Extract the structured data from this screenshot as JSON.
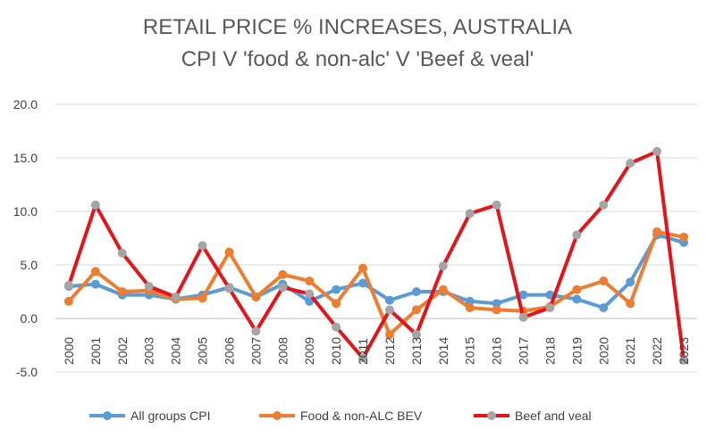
{
  "chart_data": {
    "type": "line",
    "title": "RETAIL PRICE % INCREASES, AUSTRALIA",
    "subtitle": "CPI V 'food & non-alc' V 'Beef & veal'",
    "xlabel": "",
    "ylabel": "",
    "ylim": [
      -5,
      20
    ],
    "yticks": [
      "20.0",
      "15.0",
      "10.0",
      "5.0",
      "0.0",
      "-5.0"
    ],
    "categories": [
      "2000",
      "2001",
      "2002",
      "2003",
      "2004",
      "2005",
      "2006",
      "2007",
      "2008",
      "2009",
      "2010",
      "2011",
      "2012",
      "2013",
      "2014",
      "2015",
      "2016",
      "2017",
      "2018",
      "2019",
      "2020",
      "2021",
      "2022",
      "2023"
    ],
    "grid": true,
    "legend_position": "bottom",
    "series": [
      {
        "name": "All groups CPI",
        "color": "#5B9BD5",
        "values": [
          3.0,
          3.2,
          2.2,
          2.2,
          1.8,
          2.2,
          2.9,
          2.0,
          3.2,
          1.6,
          2.7,
          3.3,
          1.7,
          2.5,
          2.5,
          1.6,
          1.4,
          2.2,
          2.2,
          1.8,
          1.0,
          3.4,
          7.8,
          7.1
        ]
      },
      {
        "name": "Food &  non-ALC BEV",
        "color": "#ED7D31",
        "values": [
          1.6,
          4.4,
          2.5,
          2.6,
          1.8,
          1.9,
          6.2,
          2.0,
          4.1,
          3.5,
          1.4,
          4.7,
          -1.5,
          0.8,
          2.7,
          1.0,
          0.8,
          0.7,
          1.1,
          2.7,
          3.5,
          1.4,
          8.1,
          7.6
        ]
      },
      {
        "name": "Beef and veal",
        "color": "#E3141B",
        "marker_color": "#A5A5A5",
        "values": [
          3.1,
          10.6,
          6.1,
          3.0,
          2.0,
          6.8,
          2.8,
          -1.2,
          2.9,
          2.3,
          -0.8,
          -3.7,
          0.8,
          -1.5,
          4.9,
          9.8,
          10.6,
          0.1,
          1.0,
          7.8,
          10.6,
          14.5,
          15.6,
          -3.9
        ]
      }
    ]
  }
}
